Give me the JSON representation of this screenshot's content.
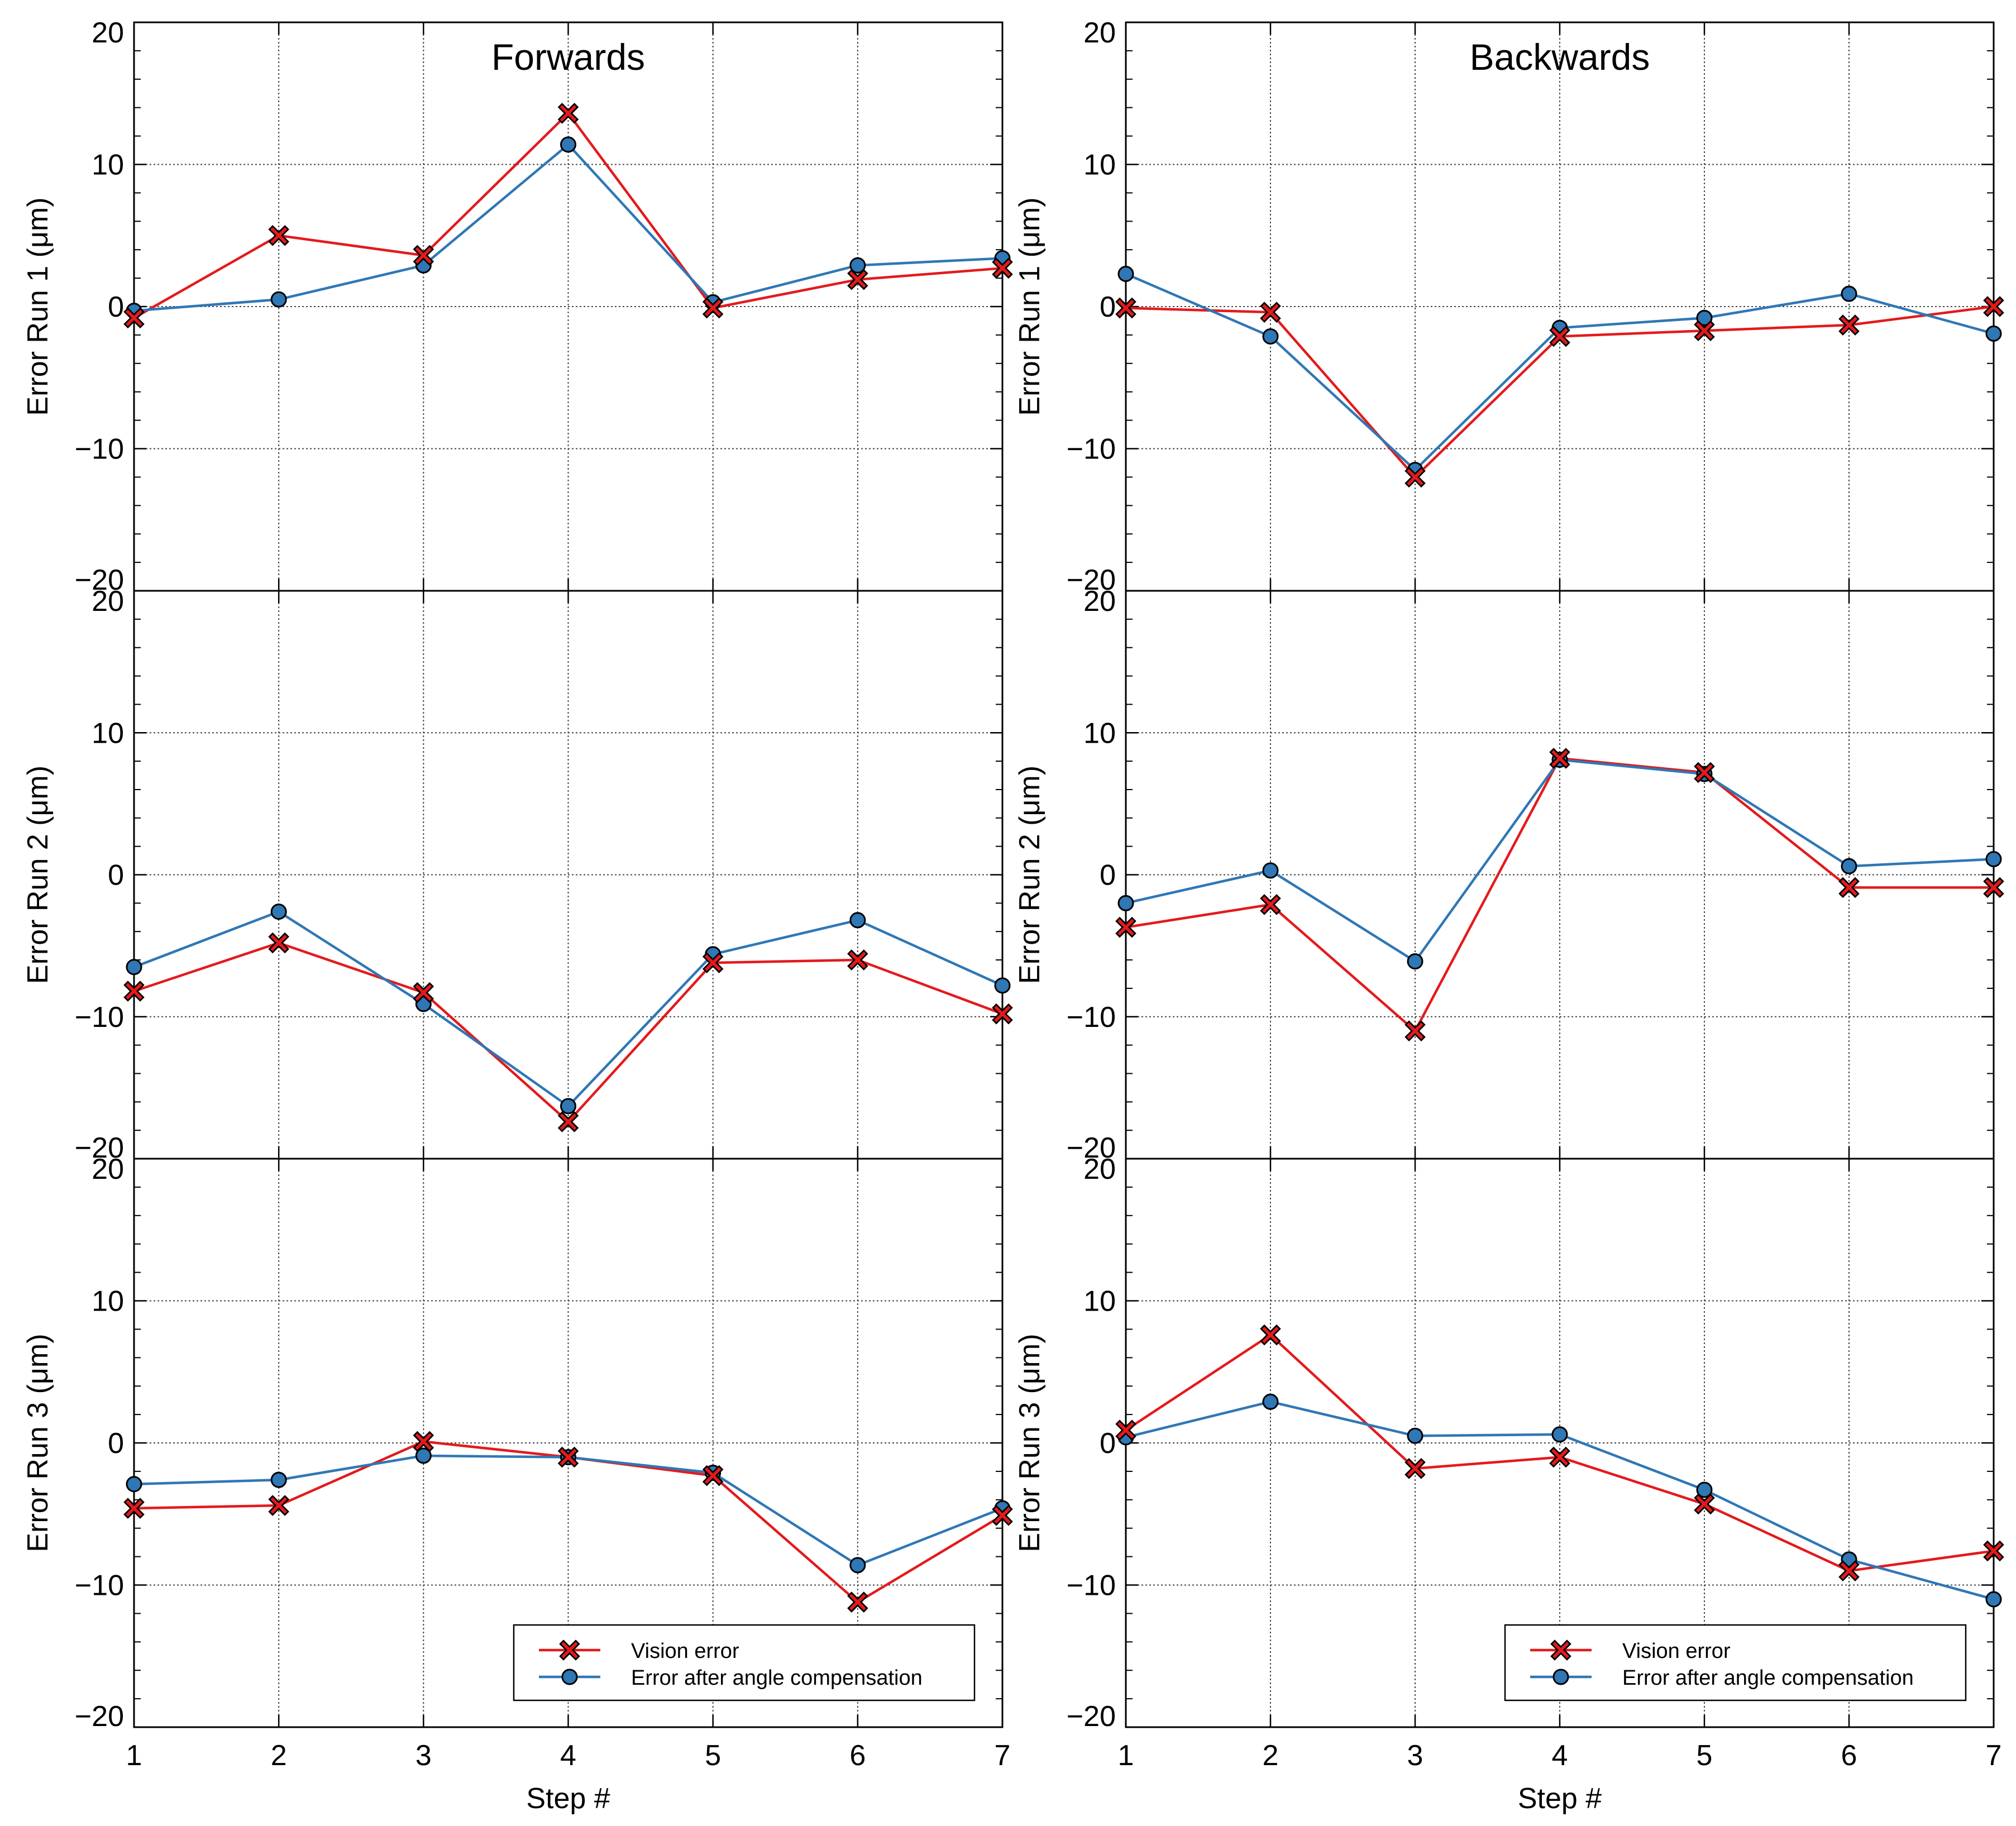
{
  "chart_data": {
    "type": "line",
    "columns": [
      "Forwards",
      "Backwards"
    ],
    "x": [
      1,
      2,
      3,
      4,
      5,
      6,
      7
    ],
    "xlabel": "Step #",
    "xlim": [
      1,
      7
    ],
    "ylim": [
      -20,
      20
    ],
    "yticks": [
      -20,
      -10,
      0,
      10,
      20
    ],
    "xticks": [
      1,
      2,
      3,
      4,
      5,
      6,
      7
    ],
    "grid": true,
    "legend": {
      "placement": "lower-right of bottom row",
      "entries": [
        {
          "label": "Vision error",
          "color": "#e31a1c",
          "marker": "x"
        },
        {
          "label": "Error after angle compensation",
          "color": "#2f77b5",
          "marker": "circle"
        }
      ]
    },
    "panels": [
      {
        "row": 1,
        "column": "Forwards",
        "ylabel": "Error Run 1 (μm)",
        "title": "Forwards",
        "series": [
          {
            "name": "Vision error",
            "values": [
              -0.8,
              5.0,
              3.6,
              13.6,
              -0.1,
              1.9,
              2.7
            ]
          },
          {
            "name": "Error after angle compensation",
            "values": [
              -0.3,
              0.5,
              2.9,
              11.4,
              0.3,
              2.9,
              3.4
            ]
          }
        ]
      },
      {
        "row": 1,
        "column": "Backwards",
        "ylabel": "Error Run 1 (μm)",
        "title": "Backwards",
        "series": [
          {
            "name": "Vision error",
            "values": [
              -0.1,
              -0.4,
              -12.0,
              -2.1,
              -1.7,
              -1.3,
              0.0
            ]
          },
          {
            "name": "Error after angle compensation",
            "values": [
              2.3,
              -2.1,
              -11.5,
              -1.5,
              -0.8,
              0.9,
              -1.9
            ]
          }
        ]
      },
      {
        "row": 2,
        "column": "Forwards",
        "ylabel": "Error Run 2 (μm)",
        "series": [
          {
            "name": "Vision error",
            "values": [
              -8.2,
              -4.8,
              -8.3,
              -17.4,
              -6.2,
              -6.0,
              -9.8
            ]
          },
          {
            "name": "Error after angle compensation",
            "values": [
              -6.5,
              -2.6,
              -9.1,
              -16.3,
              -5.6,
              -3.2,
              -7.8
            ]
          }
        ]
      },
      {
        "row": 2,
        "column": "Backwards",
        "ylabel": "Error Run 2 (μm)",
        "series": [
          {
            "name": "Vision error",
            "values": [
              -3.7,
              -2.1,
              -11.0,
              8.2,
              7.2,
              -0.9,
              -0.9
            ]
          },
          {
            "name": "Error after angle compensation",
            "values": [
              -2.0,
              0.3,
              -6.1,
              8.1,
              7.1,
              0.6,
              1.1
            ]
          }
        ]
      },
      {
        "row": 3,
        "column": "Forwards",
        "ylabel": "Error Run 3 (μm)",
        "series": [
          {
            "name": "Vision error",
            "values": [
              -4.6,
              -4.4,
              0.1,
              -1.0,
              -2.3,
              -11.2,
              -5.1
            ]
          },
          {
            "name": "Error after angle compensation",
            "values": [
              -2.9,
              -2.6,
              -0.9,
              -1.0,
              -2.1,
              -8.6,
              -4.6
            ]
          }
        ]
      },
      {
        "row": 3,
        "column": "Backwards",
        "ylabel": "Error Run 3 (μm)",
        "series": [
          {
            "name": "Vision error",
            "values": [
              0.9,
              7.6,
              -1.8,
              -1.0,
              -4.3,
              -9.0,
              -7.6
            ]
          },
          {
            "name": "Error after angle compensation",
            "values": [
              0.4,
              2.9,
              0.5,
              0.6,
              -3.3,
              -8.2,
              -11.0
            ]
          }
        ]
      }
    ]
  }
}
